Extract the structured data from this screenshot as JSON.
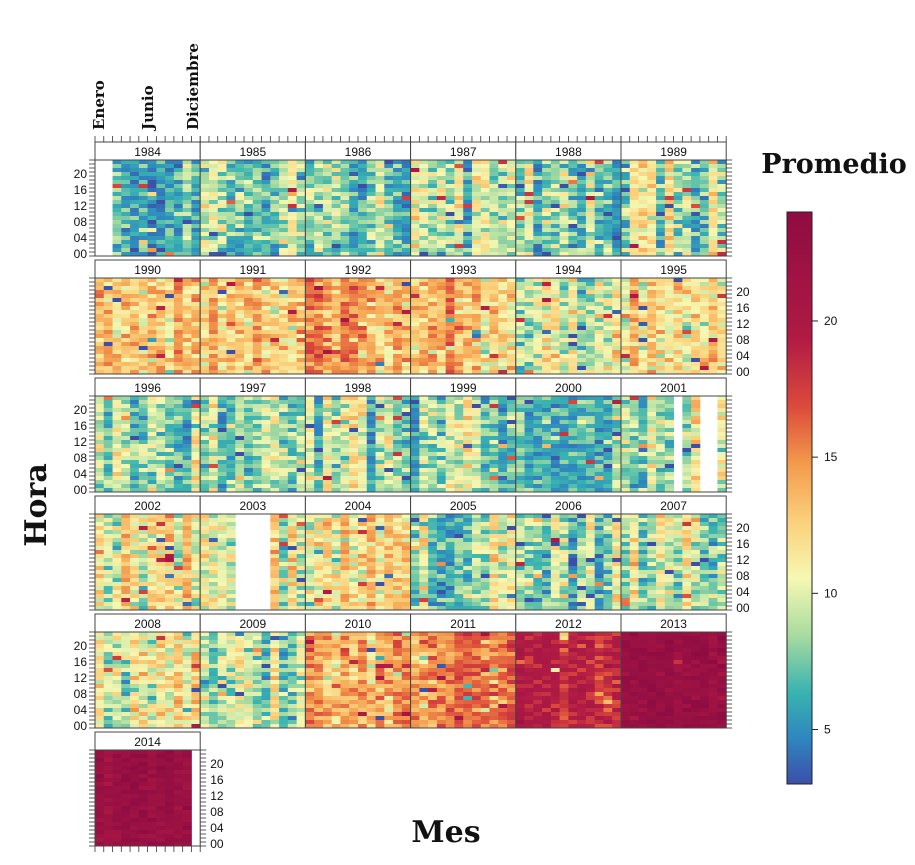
{
  "chart_data": {
    "type": "heatmap",
    "xlabel": "Mes",
    "ylabel": "Hora",
    "legend_title": "Promedio",
    "legend_placement": "right",
    "month_labels": [
      "Enero",
      "Junio",
      "Diciembre"
    ],
    "hour_ticks": [
      "20",
      "16",
      "12",
      "08",
      "04",
      "00"
    ],
    "colorbar_ticks": [
      5,
      10,
      15,
      20
    ],
    "colorbar_range": [
      3,
      24
    ],
    "grid": false,
    "colors": {
      "low": "#3b4fa8",
      "mid_low": "#2fa0b8",
      "mid": "#f6f8b2",
      "mid_high": "#f39a4c",
      "high": "#970c45"
    },
    "panels": [
      {
        "year": "1984",
        "level": 4.8,
        "missing_months": [
          1,
          2
        ]
      },
      {
        "year": "1985",
        "level": 6.6
      },
      {
        "year": "1986",
        "level": 6.2
      },
      {
        "year": "1987",
        "level": 6.5
      },
      {
        "year": "1988",
        "level": 6.4
      },
      {
        "year": "1989",
        "level": 7.0
      },
      {
        "year": "1990",
        "level": 8.8
      },
      {
        "year": "1991",
        "level": 8.5
      },
      {
        "year": "1992",
        "level": 9.5
      },
      {
        "year": "1993",
        "level": 9.2
      },
      {
        "year": "1994",
        "level": 6.6
      },
      {
        "year": "1995",
        "level": 8.2
      },
      {
        "year": "1996",
        "level": 6.0
      },
      {
        "year": "1997",
        "level": 6.4
      },
      {
        "year": "1998",
        "level": 6.5
      },
      {
        "year": "1999",
        "level": 6.4
      },
      {
        "year": "2000",
        "level": 5.5
      },
      {
        "year": "2001",
        "level": 7.0,
        "missing_months": [
          7,
          10,
          11
        ]
      },
      {
        "year": "2002",
        "level": 8.0
      },
      {
        "year": "2003",
        "level": 7.4,
        "missing_months": [
          5,
          6,
          7,
          8
        ]
      },
      {
        "year": "2004",
        "level": 8.0
      },
      {
        "year": "2005",
        "level": 6.8
      },
      {
        "year": "2006",
        "level": 6.6
      },
      {
        "year": "2007",
        "level": 6.8
      },
      {
        "year": "2008",
        "level": 7.8
      },
      {
        "year": "2009",
        "level": 6.8
      },
      {
        "year": "2010",
        "level": 9.6
      },
      {
        "year": "2011",
        "level": 10.6
      },
      {
        "year": "2012",
        "level": 13.5
      },
      {
        "year": "2013",
        "level": 21.5
      },
      {
        "year": "2014",
        "level": 21.0,
        "missing_months": [
          12
        ]
      }
    ]
  }
}
